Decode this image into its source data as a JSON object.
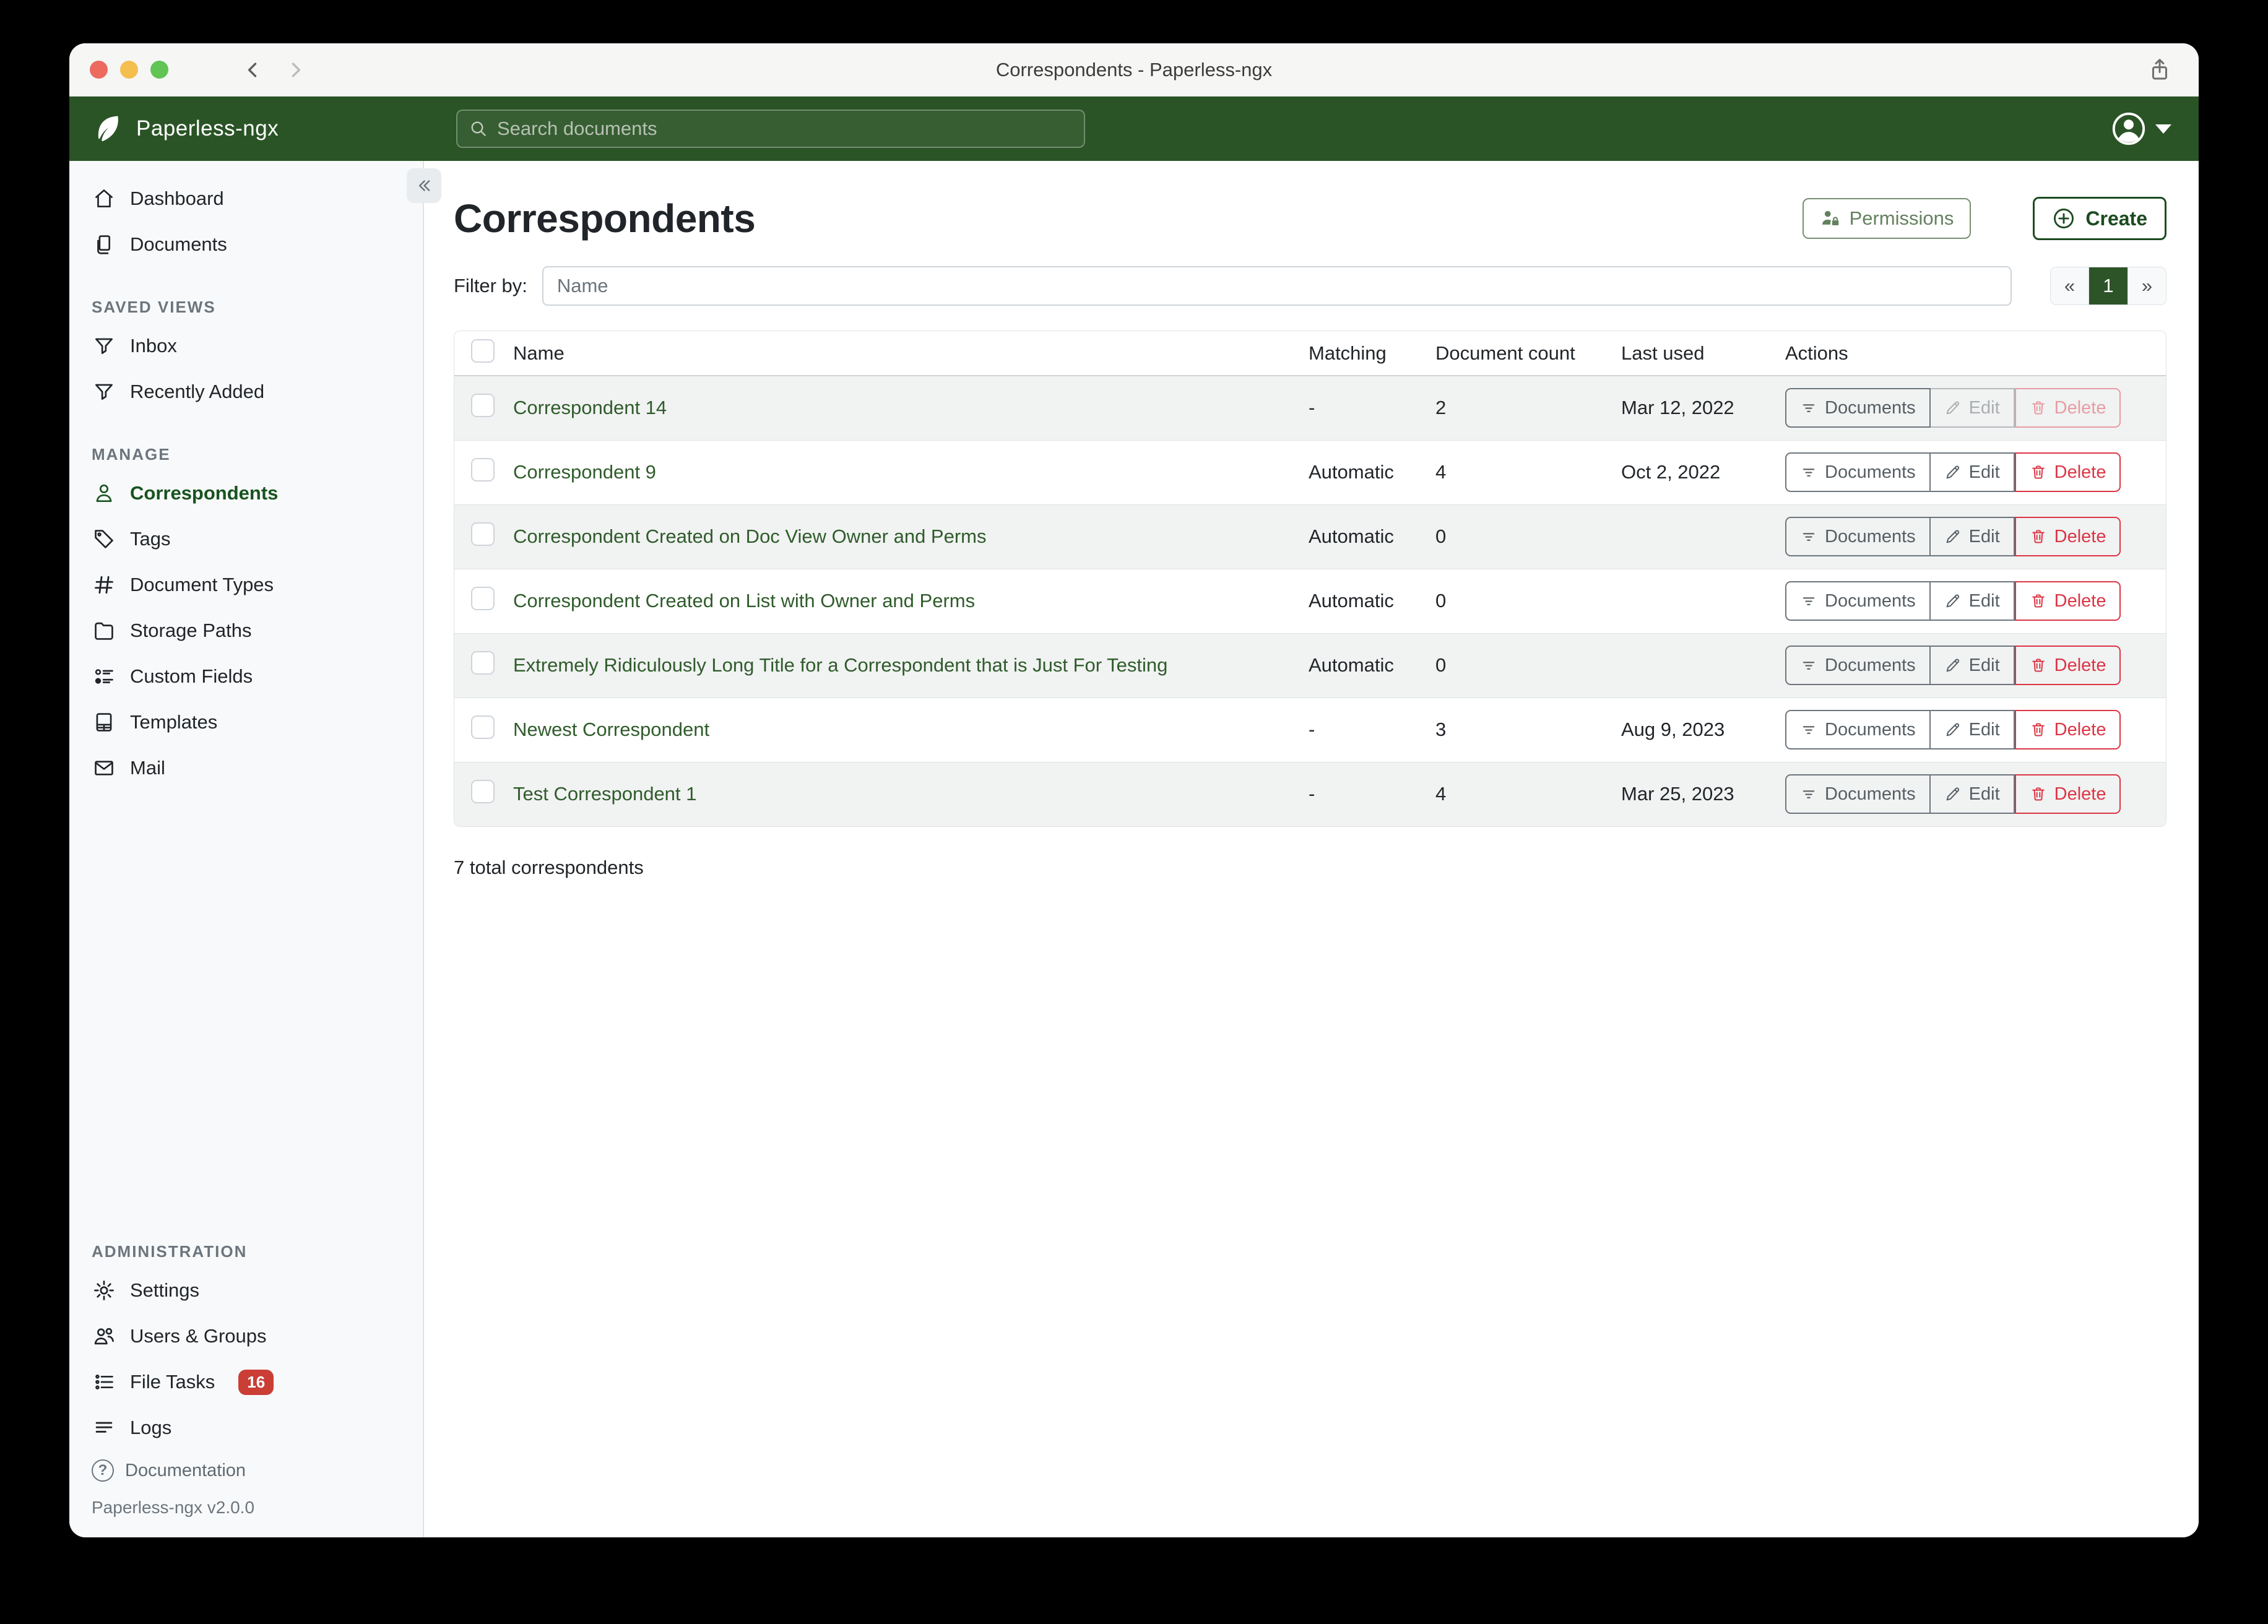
{
  "window": {
    "title": "Correspondents - Paperless-ngx"
  },
  "navbar": {
    "brand": "Paperless-ngx",
    "search_placeholder": "Search documents"
  },
  "sidebar": {
    "groups": [
      {
        "title": "",
        "items": [
          {
            "label": "Dashboard",
            "icon": "home-icon"
          },
          {
            "label": "Documents",
            "icon": "documents-icon"
          }
        ]
      },
      {
        "title": "SAVED VIEWS",
        "items": [
          {
            "label": "Inbox",
            "icon": "filter-icon"
          },
          {
            "label": "Recently Added",
            "icon": "filter-icon"
          }
        ]
      },
      {
        "title": "MANAGE",
        "items": [
          {
            "label": "Correspondents",
            "icon": "person-icon",
            "active": true
          },
          {
            "label": "Tags",
            "icon": "tag-icon"
          },
          {
            "label": "Document Types",
            "icon": "hash-icon"
          },
          {
            "label": "Storage Paths",
            "icon": "folder-icon"
          },
          {
            "label": "Custom Fields",
            "icon": "custom-fields-icon"
          },
          {
            "label": "Templates",
            "icon": "template-icon"
          },
          {
            "label": "Mail",
            "icon": "mail-icon"
          }
        ]
      },
      {
        "title": "ADMINISTRATION",
        "bottom": true,
        "items": [
          {
            "label": "Settings",
            "icon": "gear-icon"
          },
          {
            "label": "Users & Groups",
            "icon": "users-icon"
          },
          {
            "label": "File Tasks",
            "icon": "tasks-icon",
            "badge": "16"
          },
          {
            "label": "Logs",
            "icon": "logs-icon"
          }
        ]
      }
    ],
    "documentation_label": "Documentation",
    "version": "Paperless-ngx v2.0.0"
  },
  "content": {
    "title": "Correspondents",
    "permissions_label": "Permissions",
    "create_label": "Create",
    "filter_label": "Filter by:",
    "filter_placeholder": "Name",
    "pagination": {
      "prev": "«",
      "page": "1",
      "next": "»"
    },
    "table": {
      "headers": [
        "Name",
        "Matching",
        "Document count",
        "Last used",
        "Actions"
      ],
      "actions": {
        "documents": "Documents",
        "edit": "Edit",
        "delete": "Delete"
      },
      "rows": [
        {
          "name": "Correspondent 14",
          "matching": "-",
          "count": "2",
          "last_used": "Mar 12, 2022",
          "edit_disabled": true,
          "delete_disabled": true
        },
        {
          "name": "Correspondent 9",
          "matching": "Automatic",
          "count": "4",
          "last_used": "Oct 2, 2022"
        },
        {
          "name": "Correspondent Created on Doc View Owner and Perms",
          "matching": "Automatic",
          "count": "0",
          "last_used": ""
        },
        {
          "name": "Correspondent Created on List with Owner and Perms",
          "matching": "Automatic",
          "count": "0",
          "last_used": ""
        },
        {
          "name": "Extremely Ridiculously Long Title for a Correspondent that is Just For Testing",
          "matching": "Automatic",
          "count": "0",
          "last_used": ""
        },
        {
          "name": "Newest Correspondent",
          "matching": "-",
          "count": "3",
          "last_used": "Aug 9, 2023"
        },
        {
          "name": "Test Correspondent 1",
          "matching": "-",
          "count": "4",
          "last_used": "Mar 25, 2023"
        }
      ]
    },
    "summary": "7 total correspondents"
  },
  "colors": {
    "navbar_green": "#2a5426",
    "accent_green": "#17541f",
    "link_green": "#2f5c2b",
    "danger_red": "#dc3545",
    "badge_red": "#ca3e36",
    "active_page_green": "#2d5428"
  }
}
